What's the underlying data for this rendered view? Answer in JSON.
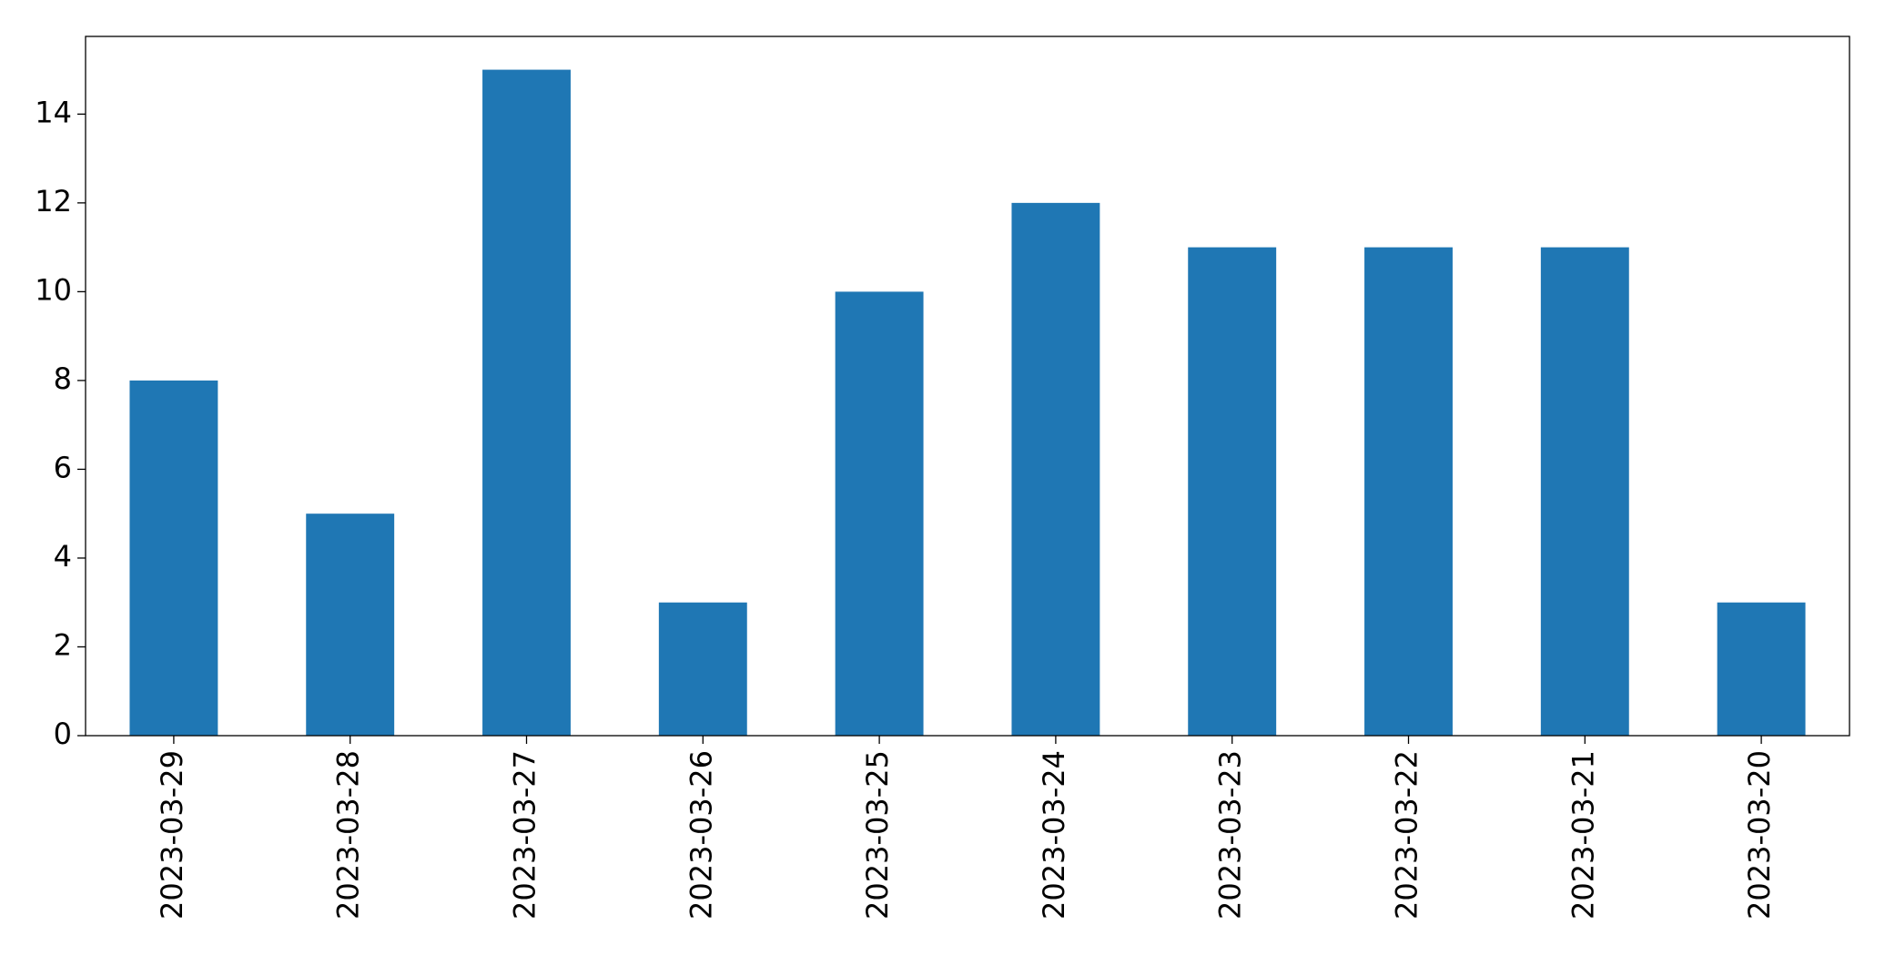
{
  "chart_data": {
    "type": "bar",
    "categories": [
      "2023-03-29",
      "2023-03-28",
      "2023-03-27",
      "2023-03-26",
      "2023-03-25",
      "2023-03-24",
      "2023-03-23",
      "2023-03-22",
      "2023-03-21",
      "2023-03-20"
    ],
    "values": [
      8,
      5,
      15,
      3,
      10,
      12,
      11,
      11,
      11,
      3
    ],
    "color": "#1f77b4",
    "ylim": [
      0,
      15.75
    ],
    "yticks": [
      0,
      2,
      4,
      6,
      8,
      10,
      12,
      14
    ],
    "grid": false
  }
}
